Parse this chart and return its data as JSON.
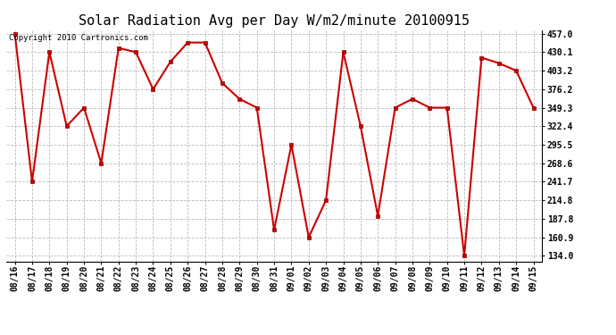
{
  "title": "Solar Radiation Avg per Day W/m2/minute 20100915",
  "copyright": "Copyright 2010 Cartronics.com",
  "labels": [
    "08/16",
    "08/17",
    "08/18",
    "08/19",
    "08/20",
    "08/21",
    "08/22",
    "08/23",
    "08/24",
    "08/25",
    "08/26",
    "08/27",
    "08/28",
    "08/29",
    "08/30",
    "08/31",
    "09/01",
    "09/02",
    "09/03",
    "09/04",
    "09/05",
    "09/06",
    "09/07",
    "09/08",
    "09/09",
    "09/10",
    "09/11",
    "09/12",
    "09/13",
    "09/14",
    "09/15"
  ],
  "values": [
    457.0,
    241.7,
    430.1,
    322.4,
    349.3,
    268.6,
    436.0,
    430.1,
    376.2,
    416.0,
    444.0,
    444.0,
    385.0,
    362.0,
    349.3,
    171.5,
    295.5,
    160.9,
    214.8,
    430.1,
    322.4,
    192.0,
    349.3,
    362.0,
    349.3,
    349.3,
    134.0,
    422.0,
    414.0,
    403.2,
    349.3
  ],
  "yticks": [
    134.0,
    160.9,
    187.8,
    214.8,
    241.7,
    268.6,
    295.5,
    322.4,
    349.3,
    376.2,
    403.2,
    430.1,
    457.0
  ],
  "ylim_min": 134.0,
  "ylim_max": 457.0,
  "line_color": "#cc0000",
  "marker_color": "#cc0000",
  "bg_color": "#ffffff",
  "grid_color": "#bbbbbb",
  "title_fontsize": 11,
  "axis_fontsize": 7,
  "copyright_fontsize": 6.5
}
